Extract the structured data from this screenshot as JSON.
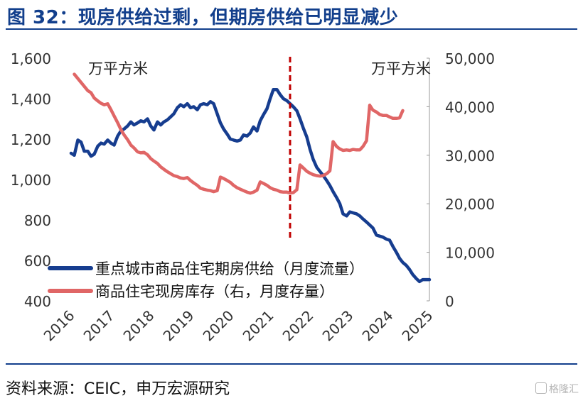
{
  "title": "图 32：现房供给过剩，但期房供给已明显减少",
  "source": "资料来源：CEIC，申万宏源研究",
  "watermark": "格隆汇",
  "chart_data": {
    "type": "line",
    "left_axis": {
      "unit": "万平方米",
      "ylim": [
        400,
        1600
      ],
      "ticks": [
        "400",
        "600",
        "800",
        "1,000",
        "1,200",
        "1,400",
        "1,600"
      ]
    },
    "right_axis": {
      "unit": "万平方米",
      "ylim": [
        0,
        50000
      ],
      "ticks": [
        "0",
        "10,000",
        "20,000",
        "30,000",
        "40,000",
        "50,000"
      ]
    },
    "x_ticks": [
      "2016",
      "2017",
      "2018",
      "2019",
      "2020",
      "2021",
      "2022",
      "2023",
      "2024",
      "2025"
    ],
    "xlim": [
      2016.0,
      2025.0
    ],
    "grid": false,
    "legend_position": "bottom-left",
    "reference_line": {
      "x": 2021.5,
      "color": "#c00000",
      "style": "dashed"
    },
    "series": [
      {
        "name": "重点城市商品住宅期房供给（月度流量）",
        "axis": "left",
        "color": "#163d8f",
        "points": [
          [
            2016.0,
            1130
          ],
          [
            2016.08,
            1120
          ],
          [
            2016.17,
            1195
          ],
          [
            2016.25,
            1185
          ],
          [
            2016.33,
            1140
          ],
          [
            2016.42,
            1140
          ],
          [
            2016.5,
            1115
          ],
          [
            2016.58,
            1125
          ],
          [
            2016.67,
            1165
          ],
          [
            2016.75,
            1180
          ],
          [
            2016.83,
            1175
          ],
          [
            2016.92,
            1195
          ],
          [
            2017.0,
            1180
          ],
          [
            2017.08,
            1170
          ],
          [
            2017.17,
            1215
          ],
          [
            2017.25,
            1240
          ],
          [
            2017.33,
            1250
          ],
          [
            2017.42,
            1265
          ],
          [
            2017.5,
            1285
          ],
          [
            2017.58,
            1270
          ],
          [
            2017.67,
            1280
          ],
          [
            2017.75,
            1290
          ],
          [
            2017.83,
            1285
          ],
          [
            2017.92,
            1300
          ],
          [
            2018.0,
            1265
          ],
          [
            2018.08,
            1245
          ],
          [
            2018.17,
            1285
          ],
          [
            2018.25,
            1270
          ],
          [
            2018.33,
            1285
          ],
          [
            2018.42,
            1295
          ],
          [
            2018.5,
            1310
          ],
          [
            2018.58,
            1325
          ],
          [
            2018.67,
            1355
          ],
          [
            2018.75,
            1370
          ],
          [
            2018.83,
            1360
          ],
          [
            2018.92,
            1375
          ],
          [
            2019.0,
            1355
          ],
          [
            2019.08,
            1360
          ],
          [
            2019.17,
            1345
          ],
          [
            2019.25,
            1370
          ],
          [
            2019.33,
            1375
          ],
          [
            2019.42,
            1370
          ],
          [
            2019.5,
            1385
          ],
          [
            2019.58,
            1375
          ],
          [
            2019.67,
            1325
          ],
          [
            2019.75,
            1280
          ],
          [
            2019.83,
            1250
          ],
          [
            2019.92,
            1225
          ],
          [
            2020.0,
            1200
          ],
          [
            2020.08,
            1195
          ],
          [
            2020.17,
            1190
          ],
          [
            2020.25,
            1195
          ],
          [
            2020.33,
            1220
          ],
          [
            2020.42,
            1215
          ],
          [
            2020.5,
            1230
          ],
          [
            2020.58,
            1260
          ],
          [
            2020.67,
            1240
          ],
          [
            2020.75,
            1290
          ],
          [
            2020.83,
            1320
          ],
          [
            2020.92,
            1350
          ],
          [
            2021.0,
            1400
          ],
          [
            2021.08,
            1445
          ],
          [
            2021.17,
            1445
          ],
          [
            2021.25,
            1420
          ],
          [
            2021.33,
            1400
          ],
          [
            2021.42,
            1390
          ],
          [
            2021.5,
            1375
          ],
          [
            2021.58,
            1360
          ],
          [
            2021.67,
            1340
          ],
          [
            2021.75,
            1300
          ],
          [
            2021.83,
            1255
          ],
          [
            2021.92,
            1210
          ],
          [
            2022.0,
            1150
          ],
          [
            2022.08,
            1100
          ],
          [
            2022.17,
            1060
          ],
          [
            2022.25,
            1040
          ],
          [
            2022.33,
            1020
          ],
          [
            2022.42,
            995
          ],
          [
            2022.5,
            970
          ],
          [
            2022.58,
            940
          ],
          [
            2022.67,
            910
          ],
          [
            2022.75,
            880
          ],
          [
            2022.83,
            830
          ],
          [
            2022.92,
            820
          ],
          [
            2023.0,
            840
          ],
          [
            2023.08,
            835
          ],
          [
            2023.17,
            830
          ],
          [
            2023.25,
            820
          ],
          [
            2023.33,
            805
          ],
          [
            2023.42,
            790
          ],
          [
            2023.5,
            775
          ],
          [
            2023.58,
            760
          ],
          [
            2023.67,
            725
          ],
          [
            2023.75,
            720
          ],
          [
            2023.83,
            715
          ],
          [
            2023.92,
            705
          ],
          [
            2024.0,
            700
          ],
          [
            2024.08,
            670
          ],
          [
            2024.17,
            640
          ],
          [
            2024.25,
            610
          ],
          [
            2024.33,
            590
          ],
          [
            2024.42,
            575
          ],
          [
            2024.5,
            555
          ],
          [
            2024.58,
            530
          ],
          [
            2024.67,
            510
          ],
          [
            2024.75,
            495
          ],
          [
            2024.83,
            505
          ],
          [
            2024.92,
            505
          ],
          [
            2025.0,
            505
          ]
        ]
      },
      {
        "name": "商品住宅现房库存（右，月度存量）",
        "axis": "right",
        "color": "#e06666",
        "points": [
          [
            2016.08,
            46700
          ],
          [
            2016.17,
            45800
          ],
          [
            2016.25,
            45000
          ],
          [
            2016.33,
            44200
          ],
          [
            2016.42,
            43300
          ],
          [
            2016.5,
            42900
          ],
          [
            2016.58,
            41800
          ],
          [
            2016.67,
            41200
          ],
          [
            2016.75,
            40700
          ],
          [
            2016.83,
            40400
          ],
          [
            2016.92,
            40600
          ],
          [
            2017.0,
            39400
          ],
          [
            2017.08,
            38100
          ],
          [
            2017.17,
            36700
          ],
          [
            2017.25,
            35300
          ],
          [
            2017.33,
            34200
          ],
          [
            2017.42,
            33200
          ],
          [
            2017.5,
            32100
          ],
          [
            2017.58,
            31500
          ],
          [
            2017.67,
            30700
          ],
          [
            2017.75,
            30500
          ],
          [
            2017.83,
            30600
          ],
          [
            2017.92,
            30100
          ],
          [
            2018.0,
            29300
          ],
          [
            2018.08,
            28800
          ],
          [
            2018.17,
            28300
          ],
          [
            2018.25,
            27600
          ],
          [
            2018.33,
            27100
          ],
          [
            2018.42,
            26600
          ],
          [
            2018.5,
            26200
          ],
          [
            2018.58,
            25800
          ],
          [
            2018.67,
            25600
          ],
          [
            2018.75,
            25300
          ],
          [
            2018.83,
            25200
          ],
          [
            2018.92,
            25400
          ],
          [
            2019.0,
            24800
          ],
          [
            2019.08,
            24300
          ],
          [
            2019.17,
            23800
          ],
          [
            2019.25,
            23200
          ],
          [
            2019.33,
            23000
          ],
          [
            2019.42,
            22800
          ],
          [
            2019.5,
            22700
          ],
          [
            2019.58,
            22500
          ],
          [
            2019.67,
            22700
          ],
          [
            2019.75,
            25500
          ],
          [
            2019.83,
            25200
          ],
          [
            2019.92,
            24800
          ],
          [
            2020.0,
            24400
          ],
          [
            2020.08,
            23800
          ],
          [
            2020.17,
            23300
          ],
          [
            2020.25,
            23000
          ],
          [
            2020.33,
            22700
          ],
          [
            2020.42,
            22400
          ],
          [
            2020.5,
            22200
          ],
          [
            2020.58,
            22400
          ],
          [
            2020.67,
            22800
          ],
          [
            2020.75,
            24500
          ],
          [
            2020.83,
            24200
          ],
          [
            2020.92,
            23800
          ],
          [
            2021.0,
            23300
          ],
          [
            2021.08,
            23000
          ],
          [
            2021.17,
            22800
          ],
          [
            2021.25,
            22500
          ],
          [
            2021.33,
            22400
          ],
          [
            2021.42,
            22400
          ],
          [
            2021.5,
            22200
          ],
          [
            2021.58,
            22300
          ],
          [
            2021.67,
            22900
          ],
          [
            2021.75,
            28000
          ],
          [
            2021.83,
            27400
          ],
          [
            2021.92,
            26700
          ],
          [
            2022.0,
            26300
          ],
          [
            2022.08,
            26000
          ],
          [
            2022.17,
            25800
          ],
          [
            2022.25,
            25700
          ],
          [
            2022.33,
            25800
          ],
          [
            2022.42,
            26200
          ],
          [
            2022.5,
            26800
          ],
          [
            2022.58,
            32800
          ],
          [
            2022.67,
            31800
          ],
          [
            2022.75,
            31300
          ],
          [
            2022.83,
            31000
          ],
          [
            2022.92,
            31100
          ],
          [
            2023.0,
            31000
          ],
          [
            2023.08,
            31200
          ],
          [
            2023.17,
            31100
          ],
          [
            2023.25,
            31100
          ],
          [
            2023.33,
            31800
          ],
          [
            2023.42,
            33000
          ],
          [
            2023.5,
            40300
          ],
          [
            2023.58,
            39300
          ],
          [
            2023.67,
            38900
          ],
          [
            2023.75,
            38400
          ],
          [
            2023.83,
            38200
          ],
          [
            2023.92,
            38200
          ],
          [
            2024.0,
            37900
          ],
          [
            2024.08,
            37600
          ],
          [
            2024.17,
            37600
          ],
          [
            2024.25,
            37700
          ],
          [
            2024.33,
            39200
          ]
        ]
      }
    ]
  }
}
